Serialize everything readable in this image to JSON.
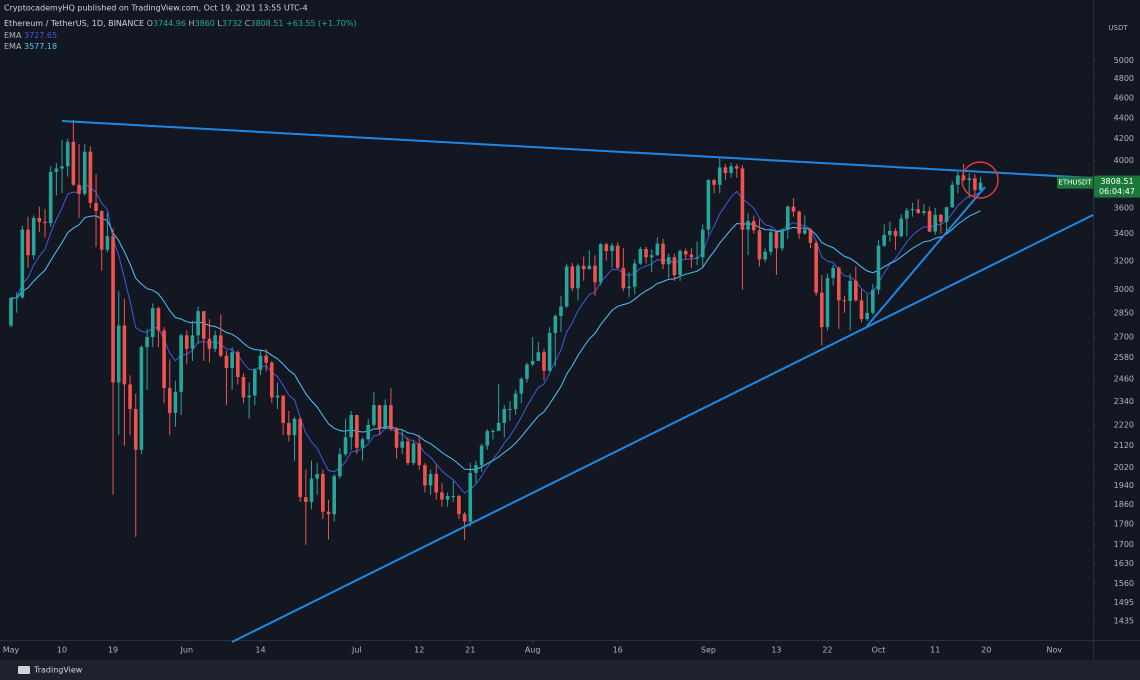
{
  "header": {
    "publisher": "CryptocademyHQ published on TradingView.com, Oct 19, 2021 13:55 UTC-4",
    "currency": "USDT",
    "footer": "TradingView"
  },
  "legend": {
    "symbol": "Ethereum / TetherUS, 1D, BINANCE",
    "ohlc_labels": [
      "O",
      "H",
      "L",
      "C"
    ],
    "change": "+63.55 (+1.70%)",
    "ema": [
      {
        "label": "EMA",
        "value": 3727.65,
        "color": "#3f5bd9"
      },
      {
        "label": "EMA",
        "value": 3577.18,
        "color": "#4fc3f7"
      }
    ]
  },
  "price_label": {
    "symbol": "ETHUSDT",
    "countdown": "06:04:47"
  },
  "chart_data": {
    "type": "candlestick",
    "log_scale": true,
    "grid": false,
    "up_color": "#26a69a",
    "down_color": "#ef5350",
    "x": [
      "May 1",
      "May 2",
      "May 3",
      "May 4",
      "May 5",
      "May 6",
      "May 7",
      "May 8",
      "May 9",
      "May 10",
      "May 11",
      "May 12",
      "May 13",
      "May 14",
      "May 15",
      "May 16",
      "May 17",
      "May 18",
      "May 19",
      "May 20",
      "May 21",
      "May 22",
      "May 23",
      "May 24",
      "May 25",
      "May 26",
      "May 27",
      "May 28",
      "May 29",
      "May 30",
      "May 31",
      "Jun 1",
      "Jun 2",
      "Jun 3",
      "Jun 4",
      "Jun 5",
      "Jun 6",
      "Jun 7",
      "Jun 8",
      "Jun 9",
      "Jun 10",
      "Jun 11",
      "Jun 12",
      "Jun 13",
      "Jun 14",
      "Jun 15",
      "Jun 16",
      "Jun 17",
      "Jun 18",
      "Jun 19",
      "Jun 20",
      "Jun 21",
      "Jun 22",
      "Jun 23",
      "Jun 24",
      "Jun 25",
      "Jun 26",
      "Jun 27",
      "Jun 28",
      "Jun 29",
      "Jun 30",
      "Jul 1",
      "Jul 2",
      "Jul 3",
      "Jul 4",
      "Jul 5",
      "Jul 6",
      "Jul 7",
      "Jul 8",
      "Jul 9",
      "Jul 10",
      "Jul 11",
      "Jul 12",
      "Jul 13",
      "Jul 14",
      "Jul 15",
      "Jul 16",
      "Jul 17",
      "Jul 18",
      "Jul 19",
      "Jul 20",
      "Jul 21",
      "Jul 22",
      "Jul 23",
      "Jul 24",
      "Jul 25",
      "Jul 26",
      "Jul 27",
      "Jul 28",
      "Jul 29",
      "Jul 30",
      "Jul 31",
      "Aug 1",
      "Aug 2",
      "Aug 3",
      "Aug 4",
      "Aug 5",
      "Aug 6",
      "Aug 7",
      "Aug 8",
      "Aug 9",
      "Aug 10",
      "Aug 11",
      "Aug 12",
      "Aug 13",
      "Aug 14",
      "Aug 15",
      "Aug 16",
      "Aug 17",
      "Aug 18",
      "Aug 19",
      "Aug 20",
      "Aug 21",
      "Aug 22",
      "Aug 23",
      "Aug 24",
      "Aug 25",
      "Aug 26",
      "Aug 27",
      "Aug 28",
      "Aug 29",
      "Aug 30",
      "Aug 31",
      "Sep 1",
      "Sep 2",
      "Sep 3",
      "Sep 4",
      "Sep 5",
      "Sep 6",
      "Sep 7",
      "Sep 8",
      "Sep 9",
      "Sep 10",
      "Sep 11",
      "Sep 12",
      "Sep 13",
      "Sep 14",
      "Sep 15",
      "Sep 16",
      "Sep 17",
      "Sep 18",
      "Sep 19",
      "Sep 20",
      "Sep 21",
      "Sep 22",
      "Sep 23",
      "Sep 24",
      "Sep 25",
      "Sep 26",
      "Sep 27",
      "Sep 28",
      "Sep 29",
      "Sep 30",
      "Oct 1",
      "Oct 2",
      "Oct 3",
      "Oct 4",
      "Oct 5",
      "Oct 6",
      "Oct 7",
      "Oct 8",
      "Oct 9",
      "Oct 10",
      "Oct 11",
      "Oct 12",
      "Oct 13",
      "Oct 14",
      "Oct 15",
      "Oct 16",
      "Oct 17",
      "Oct 18",
      "Oct 19",
      "Oct 20",
      "Oct 21",
      "Oct 22",
      "Oct 23",
      "Oct 24",
      "Oct 25",
      "Oct 26",
      "Oct 27",
      "Oct 28",
      "Oct 29",
      "Oct 30",
      "Oct 31",
      "Nov 1",
      "Nov 2",
      "Nov 3",
      "Nov 4",
      "Nov 5",
      "Nov 6",
      "Nov 7"
    ],
    "open": [
      2770,
      2945,
      2950,
      3430,
      3240,
      3520,
      3490,
      3480,
      3900,
      3930,
      3950,
      4170,
      3790,
      3715,
      4080,
      3640,
      3575,
      3280,
      3380,
      2440,
      2770,
      2430,
      2300,
      2100,
      2640,
      2700,
      2880,
      2740,
      2410,
      2280,
      2390,
      2710,
      2630,
      2710,
      2860,
      2690,
      2630,
      2710,
      2590,
      2520,
      2610,
      2470,
      2360,
      2370,
      2510,
      2590,
      2550,
      2360,
      2370,
      2230,
      2170,
      2250,
      1890,
      1870,
      1970,
      1990,
      1830,
      1820,
      1980,
      2080,
      2160,
      2270,
      2110,
      2150,
      2220,
      2320,
      2200,
      2320,
      2200,
      2110,
      2140,
      2040,
      2130,
      2030,
      1940,
      1990,
      1910,
      1880,
      1895,
      1895,
      1820,
      1790,
      1995,
      2030,
      2120,
      2190,
      2190,
      2230,
      2300,
      2300,
      2380,
      2460,
      2540,
      2560,
      2610,
      2505,
      2725,
      2830,
      2890,
      3160,
      3010,
      3165,
      3140,
      3165,
      3050,
      3320,
      3270,
      3310,
      3150,
      3010,
      3020,
      3180,
      3285,
      3225,
      3240,
      3325,
      3175,
      3225,
      3100,
      3270,
      3245,
      3225,
      3225,
      3430,
      3830,
      3790,
      3940,
      3890,
      3950,
      3930,
      3430,
      3495,
      3425,
      3210,
      3265,
      3410,
      3290,
      3430,
      3610,
      3570,
      3400,
      3430,
      3330,
      2980,
      2760,
      3080,
      3150,
      2930,
      2925,
      3060,
      2930,
      2810,
      2850,
      3000,
      3310,
      3390,
      3420,
      3380,
      3515,
      3580,
      3590,
      3560,
      3575,
      3415,
      3545,
      3490,
      3605,
      3790,
      3870,
      3830,
      3845,
      3744.96,
      null,
      null,
      null,
      null,
      null,
      null,
      null,
      null,
      null,
      null,
      null,
      null,
      null,
      null,
      null,
      null,
      null,
      null,
      null
    ],
    "high": [
      2950,
      2985,
      3460,
      3530,
      3540,
      3610,
      3590,
      3950,
      3980,
      4190,
      4200,
      4380,
      4150,
      4150,
      4130,
      3880,
      3580,
      3560,
      3440,
      2990,
      2940,
      2480,
      2380,
      2650,
      2750,
      2910,
      2890,
      2760,
      2570,
      2450,
      2720,
      2740,
      2800,
      2890,
      2860,
      2810,
      2740,
      2840,
      2620,
      2640,
      2620,
      2490,
      2440,
      2520,
      2620,
      2630,
      2560,
      2440,
      2370,
      2290,
      2260,
      2260,
      2010,
      2050,
      2040,
      2010,
      1880,
      1990,
      2110,
      2250,
      2290,
      2270,
      2160,
      2250,
      2390,
      2320,
      2350,
      2410,
      2210,
      2190,
      2160,
      2140,
      2170,
      2040,
      2010,
      2030,
      1950,
      1910,
      1960,
      1900,
      1830,
      2040,
      2050,
      2130,
      2200,
      2200,
      2430,
      2320,
      2340,
      2400,
      2470,
      2550,
      2700,
      2670,
      2630,
      2760,
      2840,
      2960,
      3180,
      3185,
      3180,
      3230,
      3275,
      3240,
      3330,
      3330,
      3330,
      3335,
      3290,
      3120,
      3210,
      3300,
      3300,
      3280,
      3370,
      3360,
      3250,
      3250,
      3280,
      3290,
      3290,
      3340,
      3470,
      3840,
      3840,
      4027,
      3970,
      3980,
      3970,
      3960,
      3560,
      3540,
      3510,
      3290,
      3440,
      3420,
      3440,
      3620,
      3680,
      3580,
      3540,
      3440,
      3350,
      3100,
      3110,
      3170,
      3160,
      2960,
      3110,
      3160,
      3000,
      2970,
      3040,
      3350,
      3470,
      3490,
      3440,
      3550,
      3600,
      3640,
      3670,
      3630,
      3610,
      3600,
      3550,
      3610,
      3820,
      3900,
      3970,
      3890,
      3880,
      3860,
      null,
      null,
      null,
      null,
      null,
      null,
      null,
      null,
      null,
      null,
      null,
      null,
      null,
      null,
      null,
      null,
      null,
      null,
      null
    ],
    "low": [
      2760,
      2850,
      2940,
      3150,
      3210,
      3410,
      3370,
      3450,
      3700,
      3720,
      3860,
      3780,
      3520,
      3700,
      3600,
      3300,
      3130,
      3260,
      1900,
      2170,
      2120,
      2170,
      1730,
      2080,
      2400,
      2640,
      2640,
      2330,
      2170,
      2210,
      2270,
      2540,
      2560,
      2660,
      2560,
      2550,
      2610,
      2580,
      2320,
      2400,
      2430,
      2330,
      2250,
      2320,
      2480,
      2500,
      2330,
      2300,
      2170,
      2140,
      2050,
      1870,
      1700,
      1840,
      1900,
      1800,
      1720,
      1790,
      1970,
      2070,
      2100,
      2080,
      2050,
      2140,
      2210,
      2170,
      2200,
      2190,
      2060,
      2080,
      2030,
      2030,
      2010,
      1910,
      1900,
      1880,
      1850,
      1850,
      1870,
      1800,
      1717,
      1770,
      1950,
      2000,
      2100,
      2150,
      2190,
      2160,
      2240,
      2270,
      2330,
      2440,
      2530,
      2560,
      2450,
      2500,
      2530,
      2730,
      2880,
      2990,
      2930,
      3060,
      3140,
      2960,
      3030,
      3200,
      3150,
      3140,
      2990,
      2950,
      2970,
      3170,
      3180,
      3120,
      3235,
      3140,
      3080,
      3060,
      3060,
      3210,
      3150,
      3170,
      3160,
      3390,
      3720,
      3720,
      3830,
      3850,
      3850,
      3000,
      3240,
      3400,
      3160,
      3190,
      3240,
      3100,
      3270,
      3360,
      3530,
      3360,
      3390,
      3290,
      2960,
      2650,
      2740,
      3030,
      2750,
      2850,
      2740,
      2920,
      2790,
      2800,
      2840,
      2970,
      3300,
      3340,
      3280,
      3370,
      3380,
      3530,
      3550,
      3540,
      3410,
      3390,
      3400,
      3420,
      3600,
      3720,
      3820,
      3680,
      3690,
      3732,
      null,
      null,
      null,
      null,
      null,
      null,
      null,
      null,
      null,
      null,
      null,
      null,
      null,
      null,
      null,
      null,
      null,
      null,
      null
    ],
    "close": [
      2945,
      2950,
      3430,
      3240,
      3520,
      3490,
      3480,
      3900,
      3930,
      3950,
      4170,
      3790,
      3715,
      4080,
      3640,
      3575,
      3280,
      3380,
      2440,
      2770,
      2430,
      2300,
      2100,
      2640,
      2700,
      2880,
      2740,
      2410,
      2280,
      2390,
      2710,
      2630,
      2710,
      2860,
      2690,
      2630,
      2710,
      2590,
      2520,
      2610,
      2470,
      2360,
      2370,
      2510,
      2590,
      2550,
      2360,
      2370,
      2230,
      2170,
      2250,
      1890,
      1870,
      1970,
      1990,
      1830,
      1820,
      1980,
      2080,
      2160,
      2270,
      2110,
      2150,
      2220,
      2320,
      2200,
      2320,
      2200,
      2110,
      2140,
      2040,
      2130,
      2030,
      1940,
      1990,
      1910,
      1880,
      1895,
      1895,
      1820,
      1790,
      1995,
      2030,
      2120,
      2190,
      2190,
      2230,
      2300,
      2300,
      2380,
      2460,
      2540,
      2560,
      2610,
      2505,
      2725,
      2830,
      2890,
      3160,
      3010,
      3165,
      3140,
      3165,
      3050,
      3320,
      3270,
      3310,
      3150,
      3010,
      3020,
      3180,
      3285,
      3225,
      3240,
      3325,
      3175,
      3225,
      3100,
      3270,
      3245,
      3225,
      3225,
      3430,
      3830,
      3790,
      3940,
      3890,
      3950,
      3930,
      3430,
      3495,
      3425,
      3210,
      3265,
      3410,
      3290,
      3430,
      3610,
      3570,
      3400,
      3430,
      3330,
      2980,
      2760,
      3080,
      3150,
      2930,
      2925,
      3060,
      2930,
      2810,
      2850,
      3000,
      3310,
      3390,
      3420,
      3380,
      3515,
      3580,
      3590,
      3560,
      3575,
      3415,
      3545,
      3490,
      3605,
      3790,
      3870,
      3830,
      3845,
      3744.96,
      3808.51,
      null,
      null,
      null,
      null,
      null,
      null,
      null,
      null,
      null,
      null,
      null,
      null,
      null,
      null,
      null,
      null,
      null,
      null,
      null
    ],
    "ylim": [
      1375,
      5720
    ],
    "yticks": [
      5000,
      4800,
      4600,
      4400,
      4200,
      4000,
      3600,
      3400,
      3200,
      3000,
      2850,
      2700,
      2580,
      2460,
      2340,
      2220,
      2120,
      2020,
      1940,
      1860,
      1780,
      1700,
      1630,
      1560,
      1495,
      1435
    ],
    "xticks": [
      {
        "value": "May 1",
        "label": "May"
      },
      {
        "value": "May 10",
        "label": "10"
      },
      {
        "value": "May 19",
        "label": "19"
      },
      {
        "value": "Jun 1",
        "label": "Jun"
      },
      {
        "value": "Jun 14",
        "label": "14"
      },
      {
        "value": "Jul 1",
        "label": "Jul"
      },
      {
        "value": "Jul 12",
        "label": "12"
      },
      {
        "value": "Jul 21",
        "label": "21"
      },
      {
        "value": "Aug 1",
        "label": "Aug"
      },
      {
        "value": "Aug 16",
        "label": "16"
      },
      {
        "value": "Sep 1",
        "label": "Sep"
      },
      {
        "value": "Sep 13",
        "label": "13"
      },
      {
        "value": "Sep 22",
        "label": "22"
      },
      {
        "value": "Oct 1",
        "label": "Oct"
      },
      {
        "value": "Oct 11",
        "label": "11"
      },
      {
        "value": "Oct 20",
        "label": "20"
      },
      {
        "value": "Nov 1",
        "label": "Nov"
      }
    ]
  }
}
